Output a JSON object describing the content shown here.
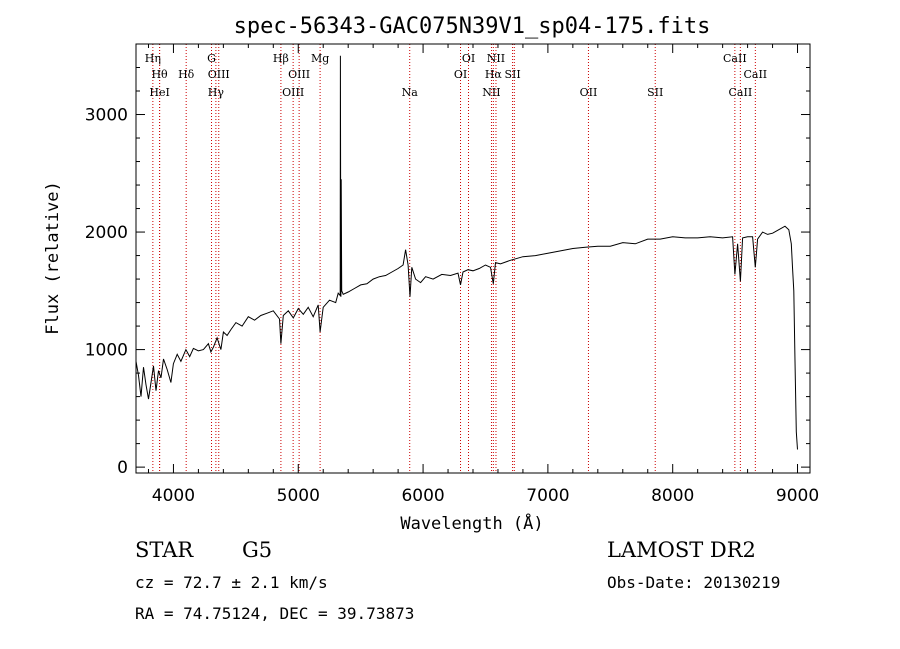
{
  "chart_data": {
    "type": "line",
    "title": "spec-56343-GAC075N39V1_sp04-175.fits",
    "xlabel": "Wavelength (Å)",
    "ylabel": "Flux (relative)",
    "xlim": [
      3700,
      9100
    ],
    "ylim": [
      -50,
      3600
    ],
    "xticks": [
      4000,
      5000,
      6000,
      7000,
      8000,
      9000
    ],
    "yticks": [
      0,
      1000,
      2000,
      3000
    ],
    "grid": false,
    "line_color": "#000000",
    "marker_color": "#cc0000",
    "series": [
      {
        "x": [
          3700,
          3720,
          3740,
          3760,
          3780,
          3800,
          3820,
          3840,
          3860,
          3880,
          3900,
          3920,
          3950,
          3980,
          4000,
          4030,
          4060,
          4100,
          4130,
          4160,
          4200,
          4240,
          4280,
          4300,
          4320,
          4350,
          4380,
          4400,
          4430,
          4460,
          4500,
          4550,
          4600,
          4650,
          4700,
          4750,
          4800,
          4850,
          4861,
          4880,
          4920,
          4960,
          5000,
          5040,
          5080,
          5120,
          5160,
          5175,
          5200,
          5250,
          5300,
          5320,
          5336,
          5338,
          5340,
          5342,
          5344,
          5348,
          5360,
          5400,
          5450,
          5500,
          5550,
          5600,
          5650,
          5700,
          5750,
          5800,
          5840,
          5860,
          5880,
          5895,
          5910,
          5940,
          5980,
          6020,
          6080,
          6150,
          6220,
          6280,
          6300,
          6320,
          6360,
          6400,
          6450,
          6500,
          6540,
          6563,
          6580,
          6620,
          6700,
          6800,
          6900,
          7000,
          7100,
          7200,
          7300,
          7400,
          7500,
          7600,
          7700,
          7800,
          7900,
          8000,
          8100,
          8200,
          8300,
          8400,
          8480,
          8498,
          8520,
          8542,
          8560,
          8600,
          8640,
          8662,
          8680,
          8720,
          8760,
          8800,
          8850,
          8900,
          8930,
          8950,
          8960,
          8970,
          8980,
          8990,
          9000
        ],
        "y": [
          900,
          780,
          600,
          850,
          700,
          580,
          720,
          860,
          650,
          820,
          760,
          920,
          830,
          720,
          880,
          960,
          900,
          1000,
          940,
          1010,
          990,
          1000,
          1050,
          980,
          1020,
          1100,
          1000,
          1150,
          1120,
          1170,
          1230,
          1200,
          1280,
          1250,
          1290,
          1310,
          1330,
          1260,
          1050,
          1290,
          1330,
          1270,
          1350,
          1300,
          1360,
          1280,
          1380,
          1150,
          1360,
          1420,
          1400,
          1480,
          1460,
          3500,
          2000,
          1450,
          2450,
          1500,
          1470,
          1490,
          1520,
          1550,
          1560,
          1600,
          1620,
          1630,
          1660,
          1690,
          1720,
          1850,
          1720,
          1450,
          1700,
          1600,
          1570,
          1620,
          1600,
          1640,
          1630,
          1650,
          1550,
          1660,
          1680,
          1670,
          1690,
          1720,
          1700,
          1560,
          1740,
          1730,
          1760,
          1790,
          1800,
          1820,
          1840,
          1860,
          1870,
          1880,
          1880,
          1910,
          1900,
          1940,
          1940,
          1960,
          1950,
          1950,
          1960,
          1950,
          1960,
          1640,
          1900,
          1580,
          1950,
          1960,
          1960,
          1700,
          1940,
          2000,
          1980,
          1990,
          2020,
          2050,
          2020,
          1900,
          1700,
          1500,
          900,
          300,
          150
        ],
        "note": ""
      }
    ],
    "lines": [
      {
        "x": 3835,
        "label": "Hη",
        "row": 1
      },
      {
        "x": 3889,
        "label": "Hθ",
        "row": 2
      },
      {
        "x": 3889,
        "label": "HeI",
        "row": 3
      },
      {
        "x": 4102,
        "label": "Hδ",
        "row": 2
      },
      {
        "x": 4305,
        "label": "G",
        "row": 1
      },
      {
        "x": 4340,
        "label": "Hγ",
        "row": 3
      },
      {
        "x": 4363,
        "label": "OIII",
        "row": 2
      },
      {
        "x": 4861,
        "label": "Hβ",
        "row": 1
      },
      {
        "x": 4959,
        "label": "OIII",
        "row": 3
      },
      {
        "x": 5007,
        "label": "OIII",
        "row": 2
      },
      {
        "x": 5175,
        "label": "Mg",
        "row": 1
      },
      {
        "x": 5893,
        "label": "Na",
        "row": 3
      },
      {
        "x": 6300,
        "label": "OI",
        "row": 2
      },
      {
        "x": 6364,
        "label": "OI",
        "row": 1
      },
      {
        "x": 6548,
        "label": "NII",
        "row": 3
      },
      {
        "x": 6563,
        "label": "Hα",
        "row": 2
      },
      {
        "x": 6584,
        "label": "NII",
        "row": 1
      },
      {
        "x": 6717,
        "label": "SII",
        "row": 2
      },
      {
        "x": 6731,
        "label": "",
        "row": 0
      },
      {
        "x": 7325,
        "label": "OII",
        "row": 3
      },
      {
        "x": 7860,
        "label": "SII",
        "row": 3
      },
      {
        "x": 8498,
        "label": "CaII",
        "row": 1
      },
      {
        "x": 8542,
        "label": "CaII",
        "row": 3
      },
      {
        "x": 8662,
        "label": "CaII",
        "row": 2
      }
    ]
  },
  "info": {
    "class_label": "STAR",
    "subclass": "G5",
    "survey": "LAMOST DR2",
    "redshift": "cz = 72.7 ± 2.1 km/s",
    "obs_date": "Obs-Date: 20130219",
    "coords": "RA =  74.75124, DEC =  39.73873"
  }
}
